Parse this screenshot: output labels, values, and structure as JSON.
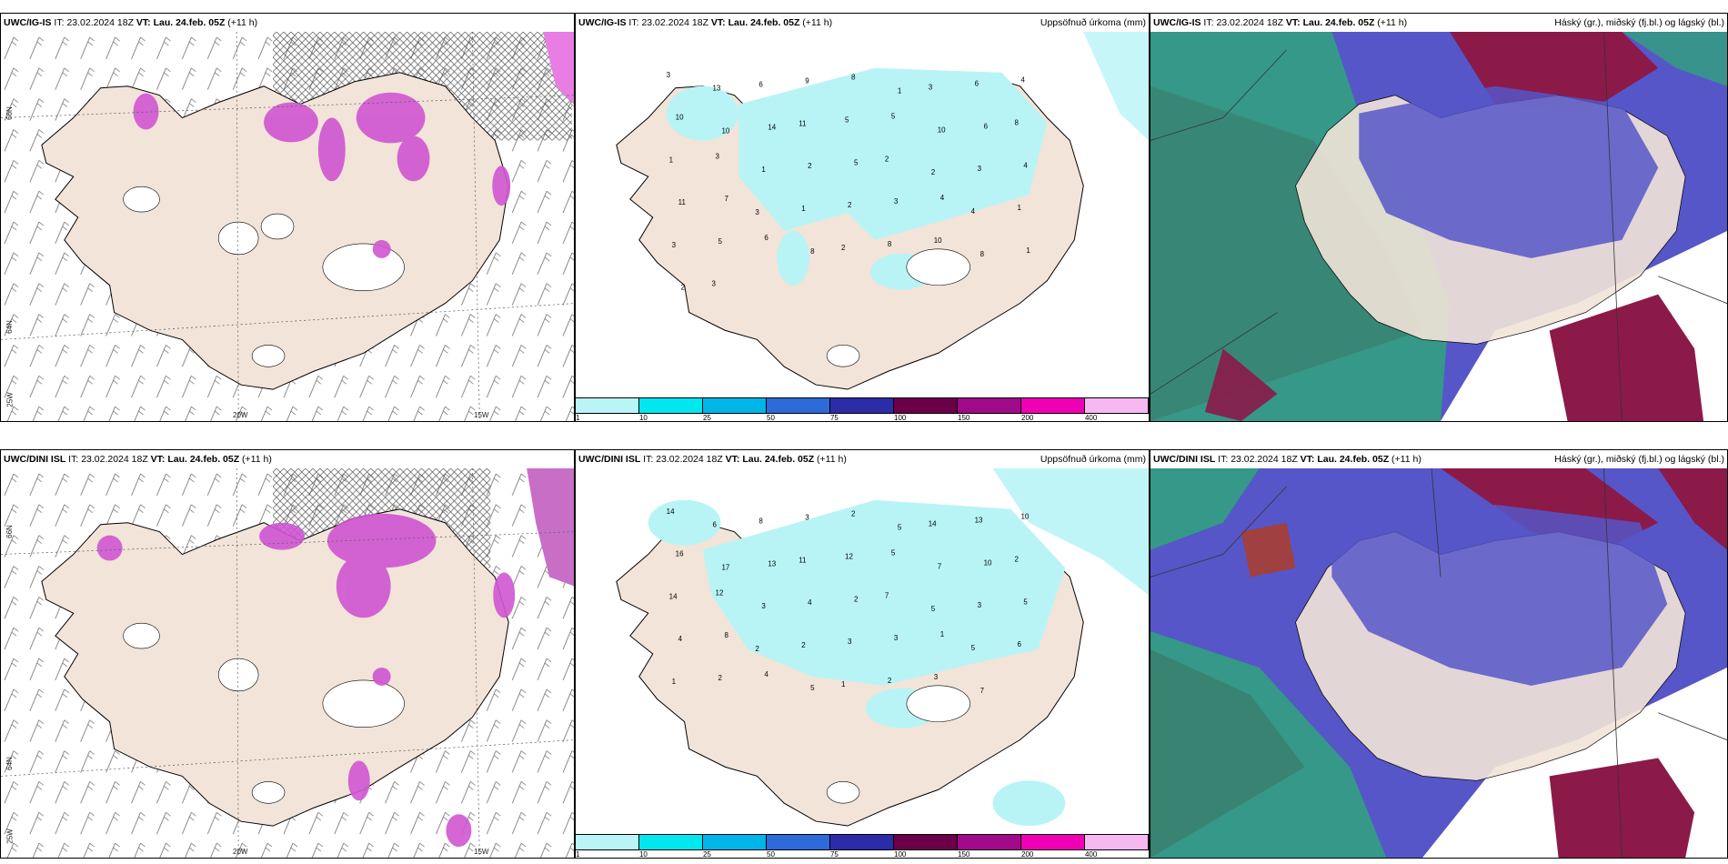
{
  "top_row": {
    "wind": {
      "model": "UWC/IG-IS",
      "it_label": "IT:",
      "it_value": "23.02.2024 18Z",
      "vt_label": "VT:",
      "vt_value": "Lau. 24.feb. 05Z",
      "lead": "(+11 h)"
    },
    "precip": {
      "model": "UWC/IG-IS",
      "it_label": "IT:",
      "it_value": "23.02.2024 18Z",
      "vt_label": "VT:",
      "vt_value": "Lau. 24.feb. 05Z",
      "lead": "(+11 h)",
      "right_title": "Uppsöfnuð úrkoma (mm)"
    },
    "clouds": {
      "model": "UWC/IG-IS",
      "it_label": "IT:",
      "it_value": "23.02.2024 18Z",
      "vt_label": "VT:",
      "vt_value": "Lau. 24.feb. 05Z",
      "lead": "(+11 h)",
      "right_title": "Háský (gr.), miðský (fj.bl.) og lágský (bl.)"
    }
  },
  "bottom_row": {
    "wind": {
      "model": "UWC/DINI ISL",
      "it_label": "IT:",
      "it_value": "23.02.2024 18Z",
      "vt_label": "VT:",
      "vt_value": "Lau. 24.feb. 05Z",
      "lead": "(+11 h)"
    },
    "precip": {
      "model": "UWC/DINI ISL",
      "it_label": "IT:",
      "it_value": "23.02.2024 18Z",
      "vt_label": "VT:",
      "vt_value": "Lau. 24.feb. 05Z",
      "lead": "(+11 h)",
      "right_title": "Uppsöfnuð úrkoma (mm)"
    },
    "clouds": {
      "model": "UWC/DINI ISL",
      "it_label": "IT:",
      "it_value": "23.02.2024 18Z",
      "vt_label": "VT:",
      "vt_value": "Lau. 24.feb. 05Z",
      "lead": "(+11 h)",
      "right_title": "Háský (gr.), miðský (fj.bl.) og lágský (bl.)"
    }
  },
  "axis_ticks": {
    "lat_66": "66N",
    "lat_64": "64N",
    "lat_25w": "25W",
    "lon_20w": "20W",
    "lon_15w": "15W"
  },
  "precip_colorbar": {
    "labels": [
      "1",
      "10",
      "25",
      "50",
      "75",
      "100",
      "150",
      "200",
      "400"
    ],
    "colors": [
      "#b9f5f6",
      "#00e7f0",
      "#00b6e8",
      "#2e6ad8",
      "#2c2ca8",
      "#6b0048",
      "#a00a8a",
      "#f000b4",
      "#f6b8f0"
    ]
  },
  "colors": {
    "land": "#f2e4d8",
    "coast": "#000000",
    "light_precip": "#b8f4f6",
    "snow_magenta": "#cf55d2",
    "high_cloud": "#8b1a49",
    "mid_cloud": "#5656c8",
    "low_cloud": "#2fa37c"
  },
  "top_precip_labels": [
    "3",
    "13",
    "6",
    "9",
    "8",
    "1",
    "3",
    "6",
    "4",
    "10",
    "10",
    "14",
    "11",
    "5",
    "5",
    "10",
    "6",
    "8",
    "1",
    "3",
    "1",
    "2",
    "5",
    "2",
    "2",
    "3",
    "4",
    "11",
    "7",
    "3",
    "1",
    "2",
    "3",
    "4",
    "4",
    "1",
    "3",
    "5",
    "6",
    "8",
    "2",
    "8",
    "10",
    "8",
    "1",
    "2",
    "3"
  ],
  "bottom_precip_labels": [
    "14",
    "6",
    "8",
    "3",
    "2",
    "5",
    "14",
    "13",
    "10",
    "16",
    "17",
    "13",
    "11",
    "12",
    "5",
    "7",
    "10",
    "2",
    "14",
    "12",
    "3",
    "4",
    "2",
    "7",
    "5",
    "3",
    "5",
    "4",
    "8",
    "2",
    "2",
    "3",
    "3",
    "1",
    "5",
    "6",
    "1",
    "2",
    "4",
    "5",
    "1",
    "2",
    "3",
    "7"
  ]
}
